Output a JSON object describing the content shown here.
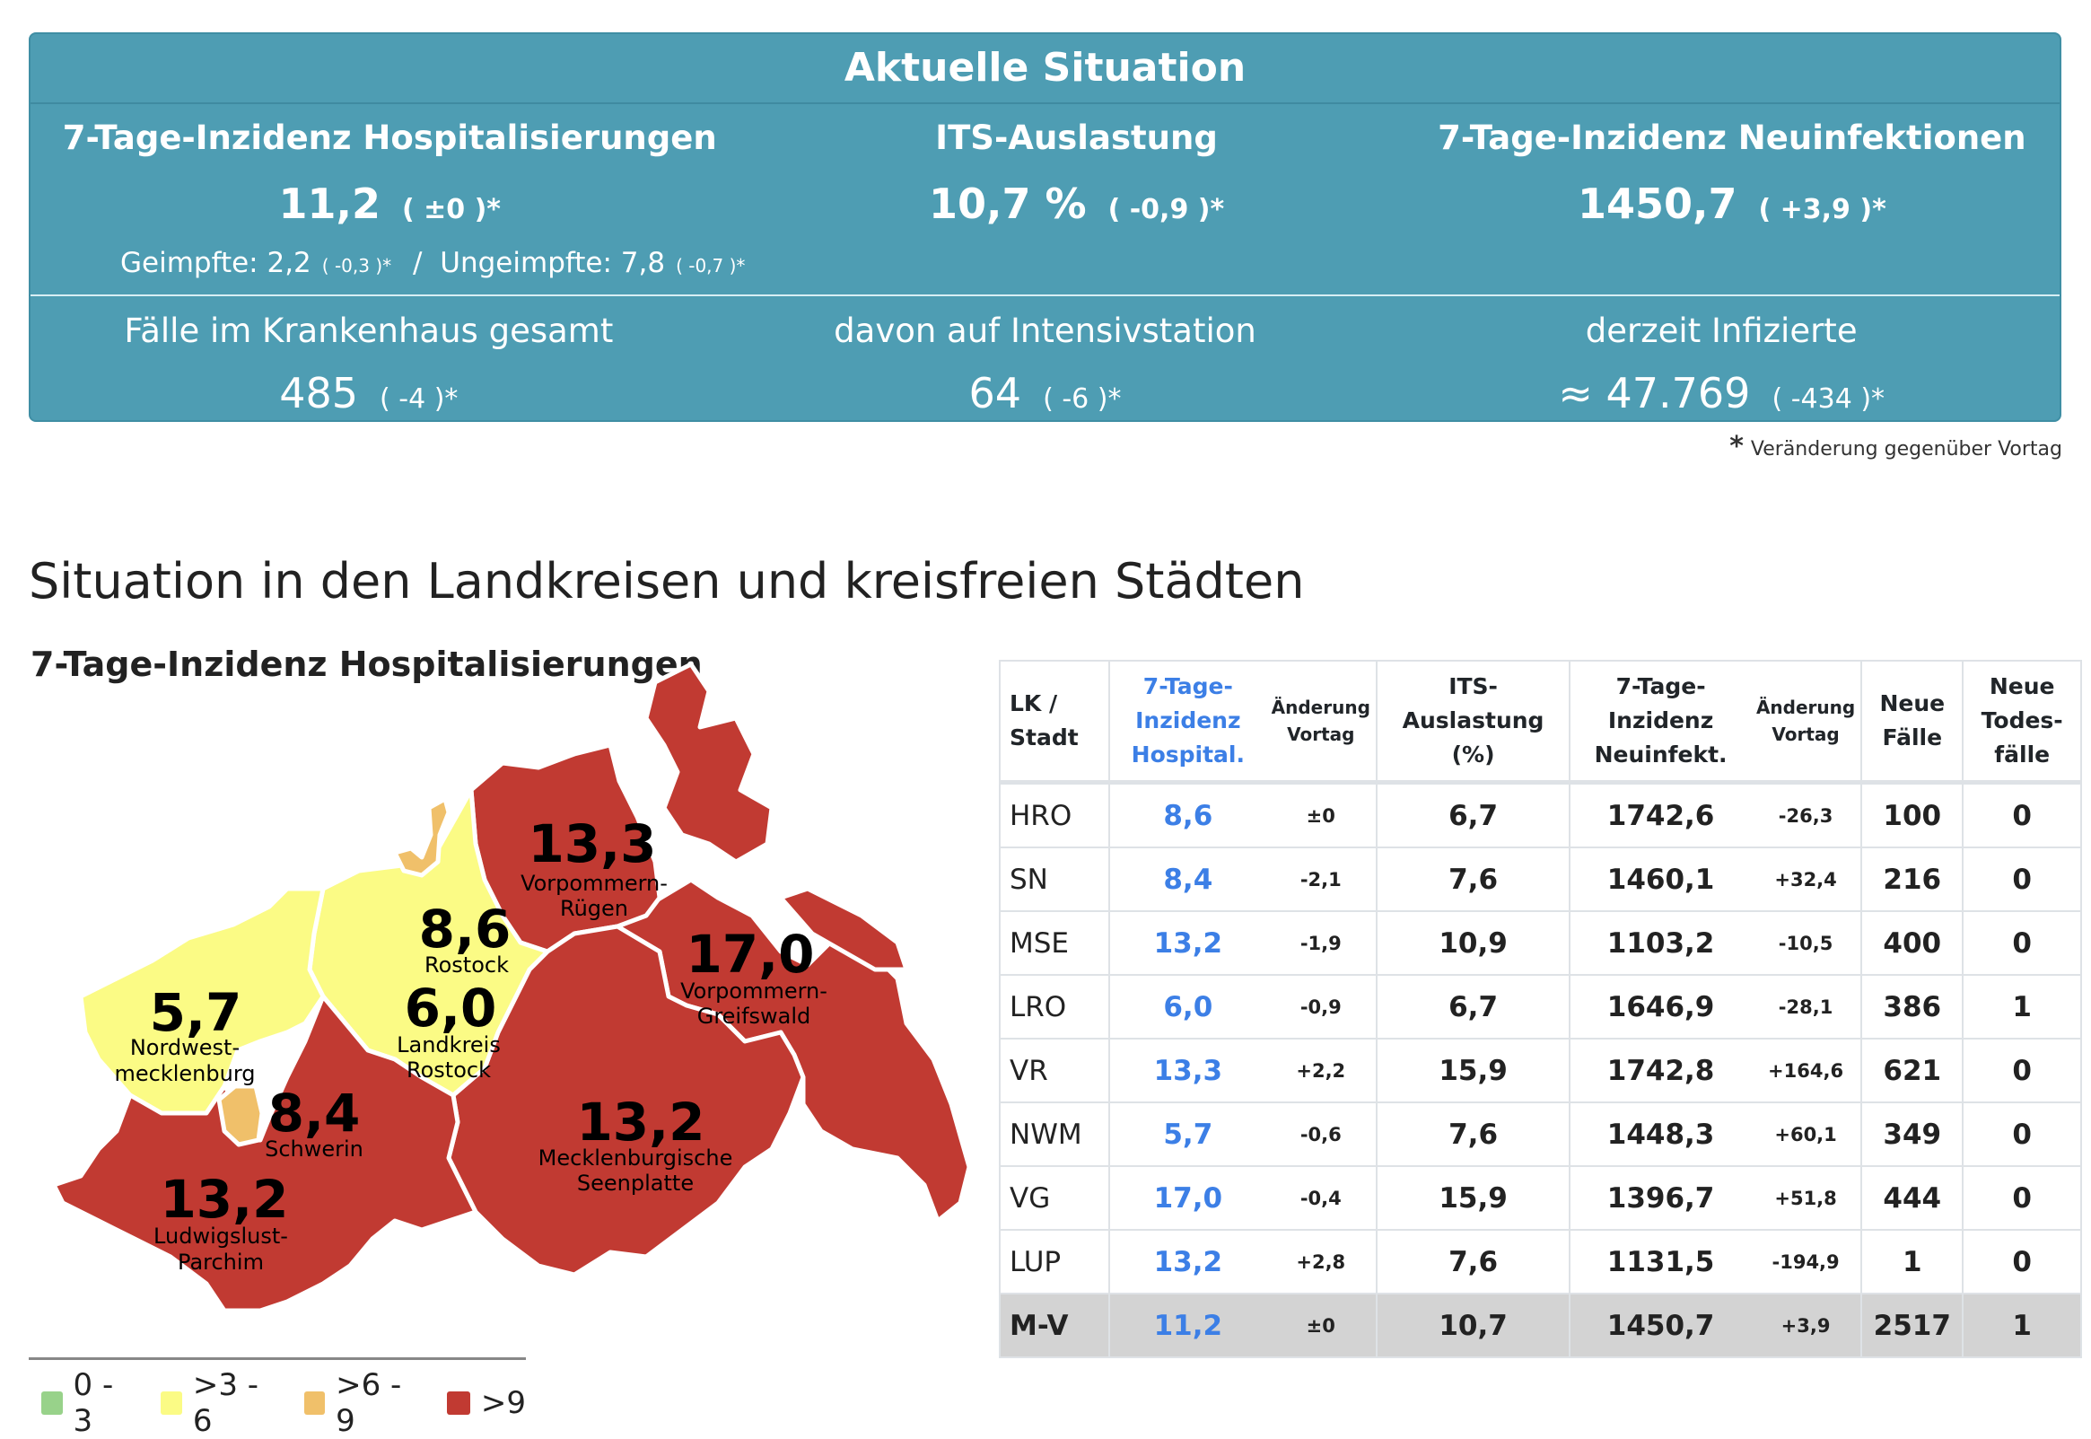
{
  "panel": {
    "title": "Aktuelle Situation",
    "top": [
      {
        "label": "7-Tage-Inzidenz Hospitalisierungen",
        "value": "11,2",
        "change": "( ±0 )*"
      },
      {
        "label": "ITS-Auslastung",
        "value": "10,7 %",
        "change": "( -0,9 )*"
      },
      {
        "label": "7-Tage-Inzidenz Neuinfektionen",
        "value": "1450,7",
        "change": "( +3,9 )*"
      }
    ],
    "vaccination": {
      "geimpfte_label": "Geimpfte: 2,2",
      "geimpfte_change": "( -0,3 )*",
      "separator": "/",
      "ungeimpfte_label": "Ungeimpfte: 7,8",
      "ungeimpfte_change": "( -0,7 )*"
    },
    "bottom": [
      {
        "label": "Fälle im Krankenhaus gesamt",
        "value": "485",
        "change": "( -4 )*"
      },
      {
        "label": "davon auf Intensivstation",
        "value": "64",
        "change": "( -6 )*"
      },
      {
        "label": "derzeit Infizierte",
        "value": "≈ 47.769",
        "change": "( -434 )*"
      }
    ]
  },
  "footnote": {
    "star": "*",
    "text": "Veränderung gegenüber Vortag"
  },
  "section_title": "Situation in den Landkreisen und kreisfreien Städten",
  "map": {
    "title": "7-Tage-Inzidenz Hospitalisierungen",
    "regions": [
      {
        "name_lines": [
          "Vorpommern-",
          "Rügen"
        ],
        "value": "13,3",
        "class": ">9",
        "color": "#c13a32"
      },
      {
        "name_lines": [
          "Vorpommern-",
          "Greifswald"
        ],
        "value": "17,0",
        "class": ">9",
        "color": "#c13a32"
      },
      {
        "name_lines": [
          "Rostock"
        ],
        "value": "8,6",
        "class": ">6 - 9",
        "color": "#f0c06a"
      },
      {
        "name_lines": [
          "Landkreis",
          "Rostock"
        ],
        "value": "6,0",
        "class": ">3 - 6",
        "color": "#fbfb85"
      },
      {
        "name_lines": [
          "Nordwest-",
          "mecklenburg"
        ],
        "value": "5,7",
        "class": ">3 - 6",
        "color": "#fbfb85"
      },
      {
        "name_lines": [
          "Schwerin"
        ],
        "value": "8,4",
        "class": ">6 - 9",
        "color": "#f0c06a"
      },
      {
        "name_lines": [
          "Ludwigslust-",
          "Parchim"
        ],
        "value": "13,2",
        "class": ">9",
        "color": "#c13a32"
      },
      {
        "name_lines": [
          "Mecklenburgische",
          "Seenplatte"
        ],
        "value": "13,2",
        "class": ">9",
        "color": "#c13a32"
      }
    ],
    "legend": [
      {
        "label": "0 - 3",
        "color": "#98d28a"
      },
      {
        "label": ">3 - 6",
        "color": "#fbfb85"
      },
      {
        "label": ">6 - 9",
        "color": "#f0c06a"
      },
      {
        "label": ">9",
        "color": "#c13a32"
      }
    ]
  },
  "table": {
    "headers": {
      "lk": [
        "LK /",
        "Stadt"
      ],
      "hosp": [
        "7-Tage-",
        "Inzidenz",
        "Hospital."
      ],
      "hosp_change": [
        "Änderung",
        "Vortag"
      ],
      "its": [
        "ITS-",
        "Auslastung",
        "(%)"
      ],
      "inz": [
        "7-Tage-",
        "Inzidenz",
        "Neuinfekt."
      ],
      "inz_change": [
        "Änderung",
        "Vortag"
      ],
      "faelle": [
        "Neue",
        "Fälle"
      ],
      "tote": [
        "Neue",
        "Todes-",
        "fälle"
      ]
    },
    "rows": [
      {
        "name": "HRO",
        "hosp": "8,6",
        "hosp_change": "±0",
        "its": "6,7",
        "inz": "1742,6",
        "inz_change": "-26,3",
        "faelle": "100",
        "tote": "0"
      },
      {
        "name": "SN",
        "hosp": "8,4",
        "hosp_change": "-2,1",
        "its": "7,6",
        "inz": "1460,1",
        "inz_change": "+32,4",
        "faelle": "216",
        "tote": "0"
      },
      {
        "name": "MSE",
        "hosp": "13,2",
        "hosp_change": "-1,9",
        "its": "10,9",
        "inz": "1103,2",
        "inz_change": "-10,5",
        "faelle": "400",
        "tote": "0"
      },
      {
        "name": "LRO",
        "hosp": "6,0",
        "hosp_change": "-0,9",
        "its": "6,7",
        "inz": "1646,9",
        "inz_change": "-28,1",
        "faelle": "386",
        "tote": "1"
      },
      {
        "name": "VR",
        "hosp": "13,3",
        "hosp_change": "+2,2",
        "its": "15,9",
        "inz": "1742,8",
        "inz_change": "+164,6",
        "faelle": "621",
        "tote": "0"
      },
      {
        "name": "NWM",
        "hosp": "5,7",
        "hosp_change": "-0,6",
        "its": "7,6",
        "inz": "1448,3",
        "inz_change": "+60,1",
        "faelle": "349",
        "tote": "0"
      },
      {
        "name": "VG",
        "hosp": "17,0",
        "hosp_change": "-0,4",
        "its": "15,9",
        "inz": "1396,7",
        "inz_change": "+51,8",
        "faelle": "444",
        "tote": "0"
      },
      {
        "name": "LUP",
        "hosp": "13,2",
        "hosp_change": "+2,8",
        "its": "7,6",
        "inz": "1131,5",
        "inz_change": "-194,9",
        "faelle": "1",
        "tote": "0"
      }
    ],
    "total": {
      "name": "M-V",
      "hosp": "11,2",
      "hosp_change": "±0",
      "its": "10,7",
      "inz": "1450,7",
      "inz_change": "+3,9",
      "faelle": "2517",
      "tote": "1"
    }
  },
  "colors": {
    "panel_bg": "#4e9db3",
    "accent_blue": "#3c7fe6",
    "total_row_bg": "#d3d3d3"
  }
}
